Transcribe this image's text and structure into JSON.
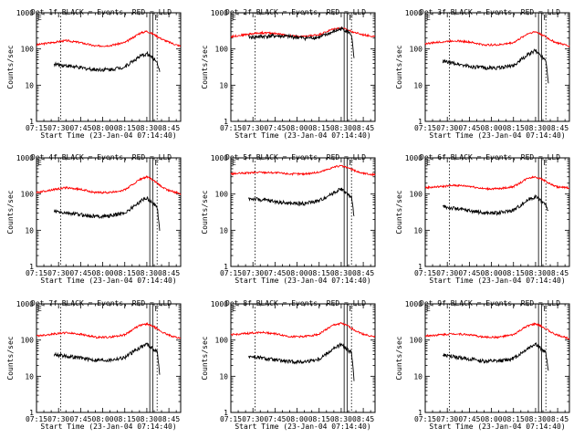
{
  "figure": {
    "xlabel": "Start Time (23-Jan-04 07:14:40)",
    "ylabel": "Counts/sec",
    "xticks": [
      "07:15",
      "07:30",
      "07:45",
      "08:00",
      "08:15",
      "08:30",
      "08:45"
    ],
    "yticks": [
      "1",
      "10",
      "100",
      "1000"
    ]
  },
  "chart_data": [
    {
      "type": "line",
      "title": "Det 1f BLACK = Events, RED = LLD",
      "xlabel": "Start Time (23-Jan-04 07:14:40)",
      "ylabel": "Counts/sec",
      "yscale": "log",
      "ylim": [
        1,
        1000
      ],
      "xlim_minutes_from_07:15": [
        0,
        98
      ],
      "event_markers": {
        "start": "E",
        "flare": "F"
      },
      "series": [
        {
          "name": "RED = LLD",
          "color": "#ff0000",
          "x": [
            0,
            10,
            20,
            30,
            40,
            50,
            60,
            65,
            70,
            75,
            80,
            85,
            89,
            95,
            98
          ],
          "y": [
            130,
            150,
            170,
            150,
            120,
            125,
            150,
            200,
            270,
            310,
            250,
            190,
            160,
            130,
            120
          ]
        },
        {
          "name": "BLACK = Events",
          "color": "#000000",
          "x": [
            12,
            20,
            30,
            40,
            50,
            60,
            65,
            70,
            75,
            78,
            82,
            84
          ],
          "y": [
            38,
            35,
            30,
            27,
            27,
            32,
            45,
            60,
            75,
            60,
            45,
            20
          ]
        }
      ]
    },
    {
      "type": "line",
      "title": "Det 2f BLACK = Events, RED = LLD",
      "xlabel": "Start Time (23-Jan-04 07:14:40)",
      "ylabel": "Counts/sec",
      "yscale": "log",
      "ylim": [
        1,
        1000
      ],
      "series": [
        {
          "name": "RED = LLD",
          "color": "#ff0000",
          "x": [
            0,
            10,
            20,
            30,
            40,
            50,
            60,
            65,
            70,
            75,
            80,
            85,
            89,
            95,
            98
          ],
          "y": [
            220,
            250,
            280,
            270,
            230,
            220,
            250,
            300,
            360,
            380,
            330,
            280,
            250,
            230,
            220
          ]
        },
        {
          "name": "BLACK = Events",
          "color": "#000000",
          "x": [
            12,
            20,
            30,
            40,
            50,
            60,
            65,
            70,
            75,
            78,
            82,
            84
          ],
          "y": [
            210,
            220,
            230,
            220,
            200,
            210,
            250,
            300,
            360,
            330,
            250,
            40
          ]
        }
      ]
    },
    {
      "type": "line",
      "title": "Det 3f BLACK = Events, RED = LLD",
      "xlabel": "Start Time (23-Jan-04 07:14:40)",
      "ylabel": "Counts/sec",
      "yscale": "log",
      "ylim": [
        1,
        1000
      ],
      "series": [
        {
          "name": "RED = LLD",
          "color": "#ff0000",
          "x": [
            0,
            10,
            20,
            30,
            40,
            50,
            60,
            65,
            70,
            75,
            80,
            85,
            89,
            95,
            98
          ],
          "y": [
            140,
            155,
            170,
            155,
            130,
            130,
            150,
            200,
            270,
            300,
            240,
            180,
            150,
            130,
            120
          ]
        },
        {
          "name": "BLACK = Events",
          "color": "#000000",
          "x": [
            12,
            20,
            30,
            40,
            50,
            60,
            65,
            70,
            75,
            78,
            82,
            84
          ],
          "y": [
            45,
            40,
            33,
            30,
            30,
            35,
            50,
            70,
            90,
            70,
            50,
            10
          ]
        }
      ]
    },
    {
      "type": "line",
      "title": "Det 4f BLACK = Events, RED = LLD",
      "xlabel": "Start Time (23-Jan-04 07:14:40)",
      "ylabel": "Counts/sec",
      "yscale": "log",
      "ylim": [
        1,
        1000
      ],
      "series": [
        {
          "name": "RED = LLD",
          "color": "#ff0000",
          "x": [
            0,
            10,
            20,
            30,
            40,
            50,
            60,
            65,
            70,
            75,
            80,
            85,
            89,
            95,
            98
          ],
          "y": [
            110,
            130,
            150,
            135,
            110,
            110,
            130,
            180,
            250,
            300,
            230,
            160,
            130,
            110,
            100
          ]
        },
        {
          "name": "BLACK = Events",
          "color": "#000000",
          "x": [
            12,
            20,
            30,
            40,
            50,
            60,
            65,
            70,
            75,
            78,
            82,
            84
          ],
          "y": [
            33,
            30,
            27,
            24,
            25,
            30,
            42,
            60,
            80,
            60,
            45,
            8
          ]
        }
      ]
    },
    {
      "type": "line",
      "title": "Det 5f BLACK = Events, RED = LLD",
      "xlabel": "Start Time (23-Jan-04 07:14:40)",
      "ylabel": "Counts/sec",
      "yscale": "log",
      "ylim": [
        1,
        1000
      ],
      "series": [
        {
          "name": "RED = LLD",
          "color": "#ff0000",
          "x": [
            0,
            10,
            20,
            30,
            40,
            50,
            60,
            65,
            70,
            75,
            80,
            85,
            89,
            95,
            98
          ],
          "y": [
            360,
            380,
            400,
            390,
            360,
            360,
            400,
            470,
            560,
            600,
            520,
            430,
            380,
            350,
            340
          ]
        },
        {
          "name": "BLACK = Events",
          "color": "#000000",
          "x": [
            12,
            20,
            30,
            40,
            50,
            60,
            65,
            70,
            75,
            78,
            82,
            84
          ],
          "y": [
            75,
            70,
            62,
            55,
            55,
            65,
            85,
            110,
            140,
            110,
            80,
            20
          ]
        }
      ]
    },
    {
      "type": "line",
      "title": "Det 6f BLACK = Events, RED = LLD",
      "xlabel": "Start Time (23-Jan-04 07:14:40)",
      "ylabel": "Counts/sec",
      "yscale": "log",
      "ylim": [
        1,
        1000
      ],
      "series": [
        {
          "name": "RED = LLD",
          "color": "#ff0000",
          "x": [
            0,
            10,
            20,
            30,
            40,
            50,
            60,
            65,
            70,
            75,
            80,
            85,
            89,
            95,
            98
          ],
          "y": [
            150,
            160,
            175,
            165,
            140,
            140,
            160,
            210,
            280,
            300,
            250,
            190,
            160,
            150,
            150
          ]
        },
        {
          "name": "BLACK = Events",
          "color": "#000000",
          "x": [
            12,
            20,
            30,
            40,
            50,
            60,
            65,
            70,
            75,
            78,
            82,
            84
          ],
          "y": [
            45,
            40,
            35,
            30,
            30,
            36,
            50,
            70,
            85,
            70,
            50,
            30
          ]
        }
      ]
    },
    {
      "type": "line",
      "title": "Det 7f BLACK = Events, RED = LLD",
      "xlabel": "Start Time (23-Jan-04 07:14:40)",
      "ylabel": "Counts/sec",
      "yscale": "log",
      "ylim": [
        1,
        1000
      ],
      "series": [
        {
          "name": "RED = LLD",
          "color": "#ff0000",
          "x": [
            0,
            10,
            20,
            30,
            40,
            50,
            60,
            65,
            70,
            75,
            80,
            85,
            89,
            95,
            98
          ],
          "y": [
            130,
            145,
            160,
            145,
            120,
            120,
            140,
            190,
            250,
            280,
            230,
            170,
            140,
            120,
            110
          ]
        },
        {
          "name": "BLACK = Events",
          "color": "#000000",
          "x": [
            12,
            20,
            30,
            40,
            50,
            60,
            65,
            70,
            75,
            78,
            82,
            84
          ],
          "y": [
            40,
            36,
            32,
            28,
            28,
            33,
            45,
            62,
            78,
            62,
            48,
            10
          ]
        }
      ]
    },
    {
      "type": "line",
      "title": "Det 8f BLACK = Events, RED = LLD",
      "xlabel": "Start Time (23-Jan-04 07:14:40)",
      "ylabel": "Counts/sec",
      "yscale": "log",
      "ylim": [
        1,
        1000
      ],
      "series": [
        {
          "name": "RED = LLD",
          "color": "#ff0000",
          "x": [
            0,
            10,
            20,
            30,
            40,
            50,
            60,
            65,
            70,
            75,
            80,
            85,
            89,
            95,
            98
          ],
          "y": [
            140,
            150,
            165,
            150,
            125,
            125,
            145,
            200,
            260,
            290,
            240,
            180,
            150,
            130,
            120
          ]
        },
        {
          "name": "BLACK = Events",
          "color": "#000000",
          "x": [
            12,
            20,
            30,
            40,
            50,
            60,
            65,
            70,
            75,
            78,
            82,
            84
          ],
          "y": [
            36,
            32,
            28,
            25,
            25,
            30,
            42,
            58,
            75,
            58,
            45,
            6
          ]
        }
      ]
    },
    {
      "type": "line",
      "title": "Det 9f BLACK = Events, RED = LLD",
      "xlabel": "Start Time (23-Jan-04 07:14:40)",
      "ylabel": "Counts/sec",
      "yscale": "log",
      "ylim": [
        1,
        1000
      ],
      "series": [
        {
          "name": "RED = LLD",
          "color": "#ff0000",
          "x": [
            0,
            10,
            20,
            30,
            40,
            50,
            60,
            65,
            70,
            75,
            80,
            85,
            89,
            95,
            98
          ],
          "y": [
            130,
            140,
            150,
            140,
            120,
            120,
            140,
            190,
            250,
            280,
            230,
            170,
            140,
            120,
            110
          ]
        },
        {
          "name": "BLACK = Events",
          "color": "#000000",
          "x": [
            12,
            20,
            30,
            40,
            50,
            60,
            65,
            70,
            75,
            78,
            82,
            84
          ],
          "y": [
            38,
            34,
            30,
            26,
            26,
            31,
            43,
            60,
            80,
            60,
            45,
            12
          ]
        }
      ]
    }
  ]
}
